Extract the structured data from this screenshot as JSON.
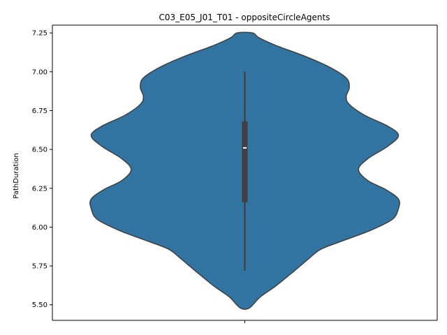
{
  "chart_data": {
    "type": "violin",
    "title": "C03_E05_J01_T01 - oppositeCircleAgents",
    "xlabel": "",
    "ylabel": "PathDuration",
    "ylim": [
      5.4,
      7.3
    ],
    "yticks": [
      5.5,
      5.75,
      6.0,
      6.25,
      6.5,
      6.75,
      7.0,
      7.25
    ],
    "ytick_labels": [
      "5.50",
      "5.75",
      "6.00",
      "6.25",
      "6.50",
      "6.75",
      "7.00",
      "7.25"
    ],
    "x_categories": [
      ""
    ],
    "grid": false,
    "colors": {
      "violin_fill": "#3274a1",
      "violin_edge": "#3f3f3f",
      "box": "#3f3f3f",
      "median": "#ffffff"
    },
    "violin": {
      "profile": [
        {
          "y": 5.48,
          "w": 0.03
        },
        {
          "y": 5.55,
          "w": 0.1
        },
        {
          "y": 5.62,
          "w": 0.2
        },
        {
          "y": 5.7,
          "w": 0.3
        },
        {
          "y": 5.75,
          "w": 0.36
        },
        {
          "y": 5.8,
          "w": 0.42
        },
        {
          "y": 5.86,
          "w": 0.5
        },
        {
          "y": 5.92,
          "w": 0.66
        },
        {
          "y": 5.98,
          "w": 0.82
        },
        {
          "y": 6.05,
          "w": 0.96
        },
        {
          "y": 6.12,
          "w": 1.0
        },
        {
          "y": 6.18,
          "w": 1.0
        },
        {
          "y": 6.24,
          "w": 0.92
        },
        {
          "y": 6.3,
          "w": 0.8
        },
        {
          "y": 6.37,
          "w": 0.74
        },
        {
          "y": 6.44,
          "w": 0.8
        },
        {
          "y": 6.52,
          "w": 0.93
        },
        {
          "y": 6.59,
          "w": 1.0
        },
        {
          "y": 6.65,
          "w": 0.93
        },
        {
          "y": 6.72,
          "w": 0.78
        },
        {
          "y": 6.79,
          "w": 0.68
        },
        {
          "y": 6.84,
          "w": 0.66
        },
        {
          "y": 6.9,
          "w": 0.68
        },
        {
          "y": 6.96,
          "w": 0.66
        },
        {
          "y": 7.03,
          "w": 0.55
        },
        {
          "y": 7.1,
          "w": 0.39
        },
        {
          "y": 7.17,
          "w": 0.2
        },
        {
          "y": 7.22,
          "w": 0.09
        },
        {
          "y": 7.25,
          "w": 0.05
        }
      ],
      "whisker_low": 5.72,
      "q1": 6.16,
      "median": 6.51,
      "q3": 6.68,
      "whisker_high": 7.0
    }
  }
}
